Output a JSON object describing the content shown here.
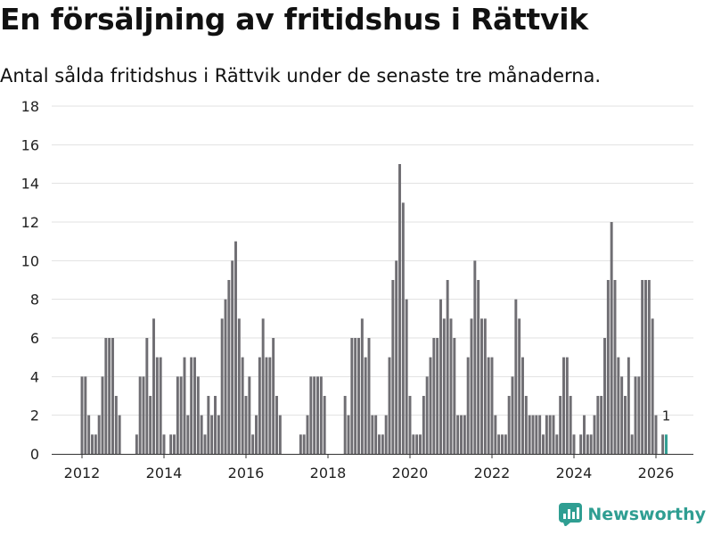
{
  "header": {
    "title": "En försäljning av fritidshus i Rättvik",
    "subtitle": "Antal sålda fritidshus i Rättvik under de senaste tre månaderna."
  },
  "brand": {
    "name": "Newsworthy",
    "icon": "newsworthy-logo-icon",
    "color": "#2f9e92"
  },
  "chart_data": {
    "type": "bar",
    "title": "En försäljning av fritidshus i Rättvik",
    "subtitle": "Antal sålda fritidshus i Rättvik under de senaste tre månaderna.",
    "x_start": "2012-01",
    "x_tick_labels": [
      "2012",
      "2014",
      "2016",
      "2018",
      "2020",
      "2022",
      "2024",
      "2026"
    ],
    "y_tick_labels": [
      "0",
      "2",
      "4",
      "6",
      "8",
      "10",
      "12",
      "14",
      "16",
      "18"
    ],
    "ylim": [
      0,
      18
    ],
    "grid": true,
    "bar_color": "#6f6e73",
    "highlight_color": "#2f9e92",
    "highlight_label": "1",
    "values": [
      4,
      4,
      2,
      1,
      1,
      2,
      4,
      6,
      6,
      6,
      3,
      2,
      0,
      0,
      0,
      0,
      1,
      4,
      4,
      6,
      3,
      7,
      5,
      5,
      1,
      0,
      1,
      1,
      4,
      4,
      5,
      2,
      5,
      5,
      4,
      2,
      1,
      3,
      2,
      3,
      2,
      7,
      8,
      9,
      10,
      11,
      7,
      5,
      3,
      4,
      1,
      2,
      5,
      7,
      5,
      5,
      6,
      3,
      2,
      0,
      0,
      0,
      0,
      0,
      1,
      1,
      2,
      4,
      4,
      4,
      4,
      3,
      0,
      0,
      0,
      0,
      0,
      3,
      2,
      6,
      6,
      6,
      7,
      5,
      6,
      2,
      2,
      1,
      1,
      2,
      5,
      9,
      10,
      15,
      13,
      8,
      3,
      1,
      1,
      1,
      3,
      4,
      5,
      6,
      6,
      8,
      7,
      9,
      7,
      6,
      2,
      2,
      2,
      5,
      7,
      10,
      9,
      7,
      7,
      5,
      5,
      2,
      1,
      1,
      1,
      3,
      4,
      8,
      7,
      5,
      3,
      2,
      2,
      2,
      2,
      1,
      2,
      2,
      2,
      1,
      3,
      5,
      5,
      3,
      1,
      0,
      1,
      2,
      1,
      1,
      2,
      3,
      3,
      6,
      9,
      12,
      9,
      5,
      4,
      3,
      5,
      1,
      4,
      4,
      9,
      9,
      9,
      7,
      2,
      0,
      1,
      1
    ]
  }
}
